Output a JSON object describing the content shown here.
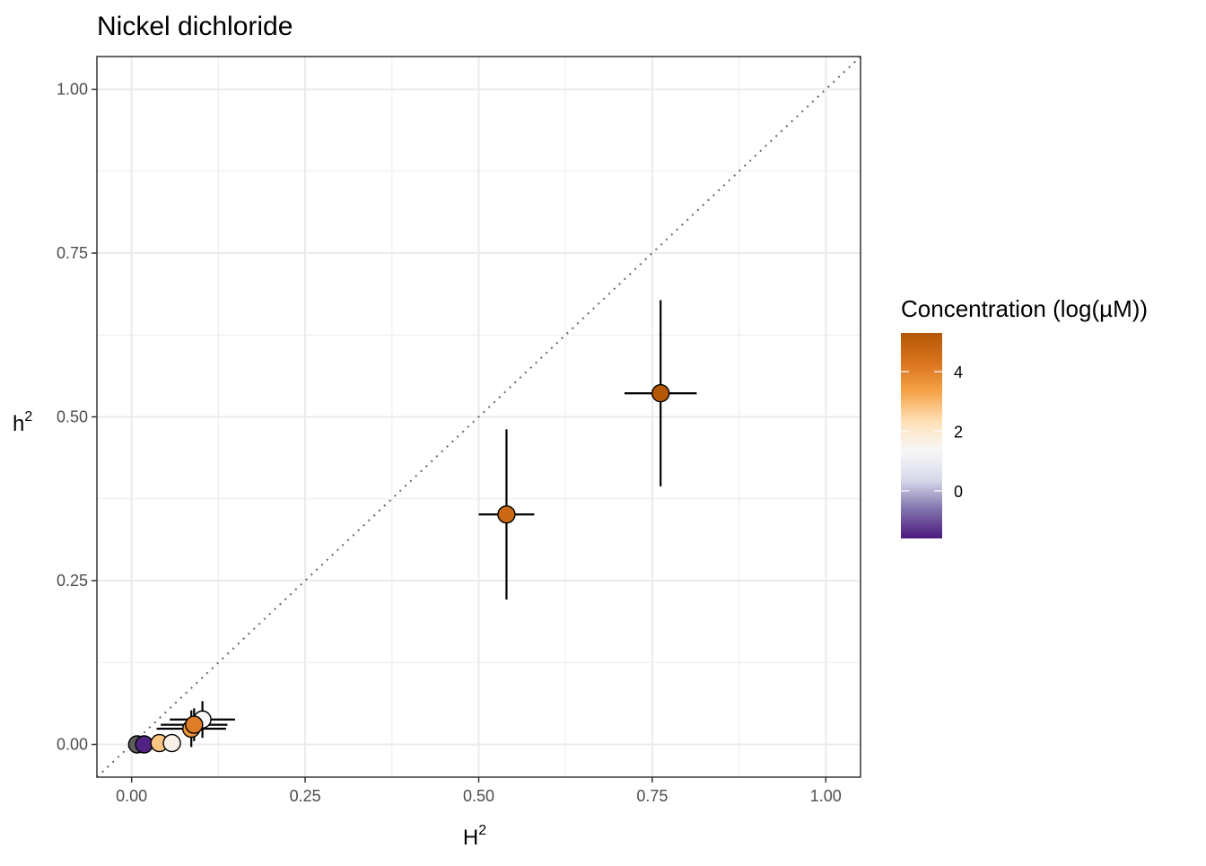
{
  "chart_data": {
    "type": "scatter",
    "title": "Nickel dichloride",
    "xlabel": "H",
    "xlabel_sup": "2",
    "ylabel": "h",
    "ylabel_sup": "2",
    "xlim": [
      -0.05,
      1.05
    ],
    "ylim": [
      -0.05,
      1.05
    ],
    "x_ticks": [
      0.0,
      0.25,
      0.5,
      0.75,
      1.0
    ],
    "x_tick_labels": [
      "0.00",
      "0.25",
      "0.50",
      "0.75",
      "1.00"
    ],
    "y_ticks": [
      0.0,
      0.25,
      0.5,
      0.75,
      1.0
    ],
    "y_tick_labels": [
      "0.00",
      "0.25",
      "0.50",
      "0.75",
      "1.00"
    ],
    "grid": true,
    "reference_line": {
      "type": "identity",
      "style": "dotted"
    },
    "legend": {
      "title": "Concentration (log(µM))",
      "placement": "right",
      "type": "colorbar",
      "range": [
        -1.6,
        5.3
      ],
      "ticks": [
        0,
        2,
        4
      ],
      "tick_labels": [
        "0",
        "2",
        "4"
      ],
      "colors": [
        "#4b1a7d",
        "#8073ac",
        "#d8daeb",
        "#f7f7f7",
        "#fee0b6",
        "#f5a349",
        "#d9731d",
        "#b35806"
      ]
    },
    "points": [
      {
        "x": 0.008,
        "y": 0.0,
        "x_err": 0.0,
        "y_err": 0.0,
        "conc": null
      },
      {
        "x": 0.018,
        "y": 0.0,
        "x_err": 0.0,
        "y_err": 0.0,
        "conc": -1.5
      },
      {
        "x": 0.04,
        "y": 0.002,
        "x_err": 0.0,
        "y_err": 0.0,
        "conc": 2.8
      },
      {
        "x": 0.058,
        "y": 0.002,
        "x_err": 0.0,
        "y_err": 0.0,
        "conc": 1.6
      },
      {
        "x": 0.102,
        "y": 0.038,
        "x_err": 0.047,
        "y_err": 0.028,
        "conc": 1.3
      },
      {
        "x": 0.086,
        "y": 0.024,
        "x_err": 0.05,
        "y_err": 0.028,
        "conc": 3.6
      },
      {
        "x": 0.09,
        "y": 0.03,
        "x_err": 0.048,
        "y_err": 0.025,
        "conc": 4.1
      },
      {
        "x": 0.54,
        "y": 0.351,
        "x_err": 0.04,
        "y_err": 0.13,
        "conc": 4.7
      },
      {
        "x": 0.762,
        "y": 0.536,
        "x_err": 0.052,
        "y_err": 0.142,
        "conc": 5.3
      }
    ]
  }
}
